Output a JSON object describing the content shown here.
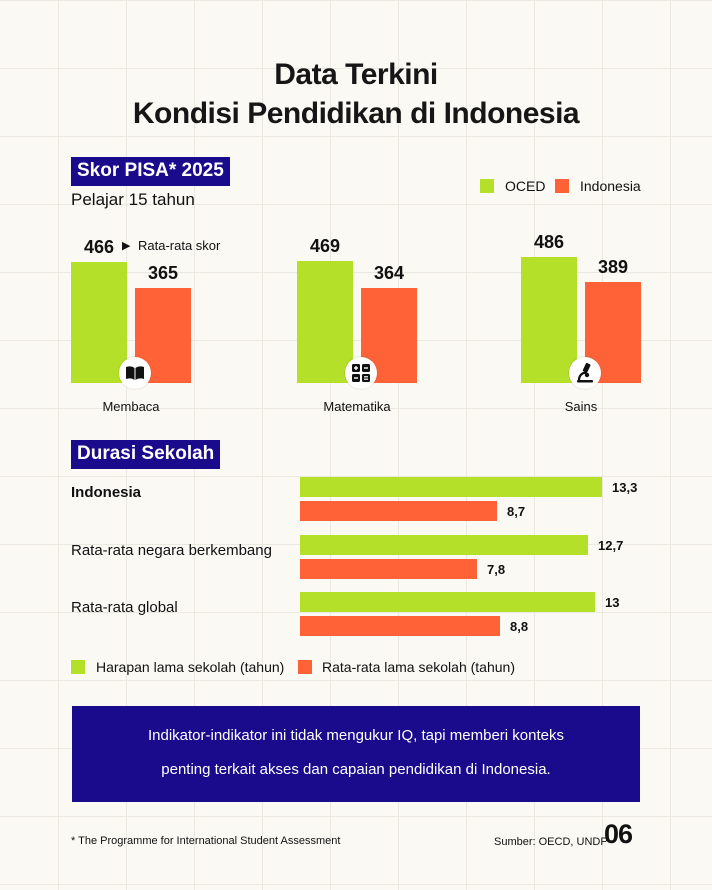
{
  "title_line1": "Data Terkini",
  "title_line2": "Kondisi Pendidikan di Indonesia",
  "pisa": {
    "tag": "Skor PISA* 2025",
    "subtitle": "Pelajar 15 tahun",
    "avg_note": "Rata-rata skor",
    "legend": [
      "OCED",
      "Indonesia"
    ]
  },
  "durasi": {
    "tag": "Durasi Sekolah",
    "legend": [
      "Harapan lama sekolah (tahun)",
      "Rata-rata lama sekolah (tahun)"
    ]
  },
  "chart_data": [
    {
      "type": "bar",
      "categories": [
        "Membaca",
        "Matematika",
        "Sains"
      ],
      "series": [
        {
          "name": "OCED",
          "values": [
            466,
            469,
            486
          ],
          "color": "#b5e02a"
        },
        {
          "name": "Indonesia",
          "values": [
            365,
            364,
            389
          ],
          "color": "#ff6236"
        }
      ],
      "icons": [
        "book-icon",
        "calculator-icon",
        "microscope-icon"
      ]
    },
    {
      "type": "bar",
      "orientation": "horizontal",
      "categories": [
        "Indonesia",
        "Rata-rata negara berkembang",
        "Rata-rata global"
      ],
      "series": [
        {
          "name": "Harapan lama sekolah (tahun)",
          "values": [
            13.3,
            12.7,
            13
          ],
          "labels": [
            "13,3",
            "12,7",
            "13"
          ],
          "color": "#b5e02a"
        },
        {
          "name": "Rata-rata lama sekolah (tahun)",
          "values": [
            8.7,
            7.8,
            8.8
          ],
          "labels": [
            "8,7",
            "7,8",
            "8,8"
          ],
          "color": "#ff6236"
        }
      ]
    }
  ],
  "info_line1": "Indikator-indikator ini tidak mengukur IQ, tapi memberi konteks",
  "info_line2": "penting terkait akses dan capaian pendidikan di Indonesia.",
  "footnote": "* The Programme for International Student Assessment",
  "source": "Sumber: OECD, UNDP",
  "page_number": "06"
}
